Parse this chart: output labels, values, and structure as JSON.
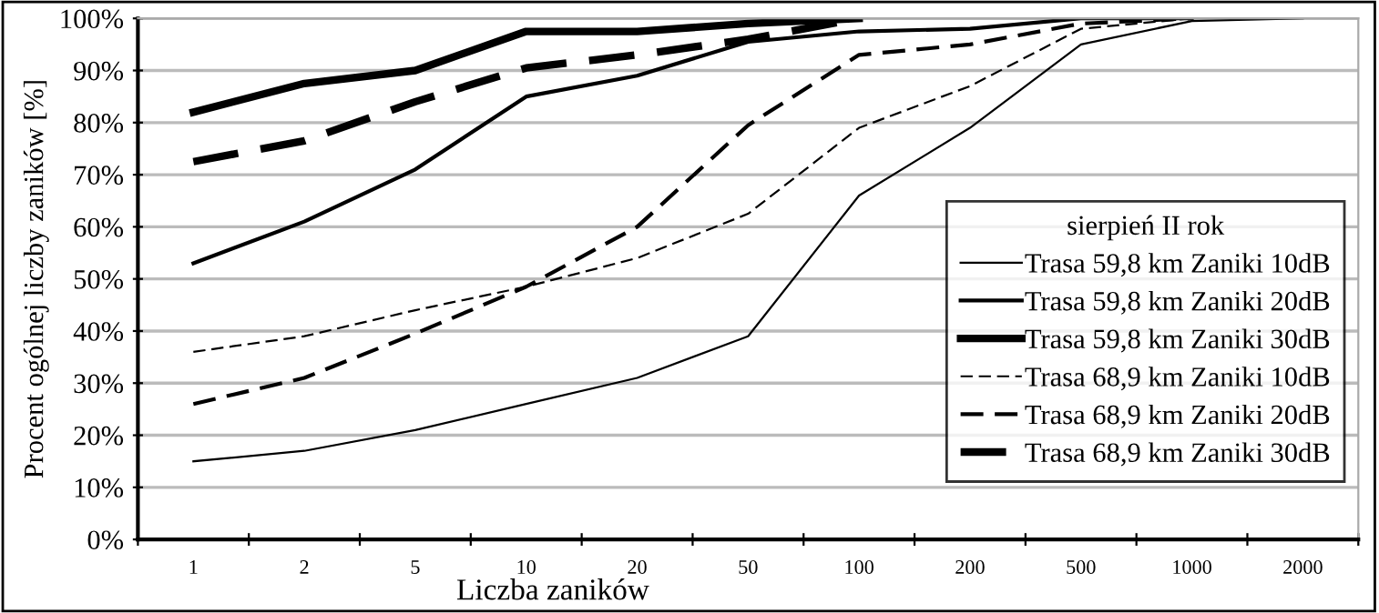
{
  "chart_data": {
    "type": "line",
    "xlabel": "Liczba zaników",
    "ylabel": "Procent ogólnej liczby zaników [%]",
    "legend_title": "sierpień II rok",
    "categories": [
      "1",
      "2",
      "5",
      "10",
      "20",
      "50",
      "100",
      "200",
      "500",
      "1000",
      "2000"
    ],
    "series": [
      {
        "name": "Trasa 59,8 km Zaniki 10dB",
        "color": "#000000",
        "line_style": "solid",
        "values": [
          15,
          17,
          21,
          26,
          31,
          39,
          66,
          79,
          95,
          99.5,
          100
        ]
      },
      {
        "name": "Trasa 59,8 km Zaniki 20dB",
        "color": "#000000",
        "line_style": "solid",
        "values": [
          53,
          61,
          71,
          85,
          89,
          95.5,
          97.5,
          98,
          100,
          100,
          null
        ]
      },
      {
        "name": "Trasa 59,8 km Zaniki 30dB",
        "color": "#000000",
        "line_style": "solid",
        "values": [
          82,
          87.5,
          90,
          97.5,
          97.5,
          99,
          100,
          null,
          null,
          null,
          null
        ]
      },
      {
        "name": "Trasa 68,9 km Zaniki 10dB",
        "color": "#000000",
        "line_style": "dashed",
        "values": [
          36,
          39,
          44,
          48.5,
          54,
          62.5,
          79,
          87,
          98,
          100,
          null
        ]
      },
      {
        "name": "Trasa 68,9 km Zaniki 20dB",
        "color": "#000000",
        "line_style": "dashed",
        "values": [
          26,
          31,
          39.5,
          48.5,
          60,
          79.5,
          93,
          95,
          99,
          100,
          null
        ]
      },
      {
        "name": "Trasa 68,9 km Zaniki 30dB",
        "color": "#000000",
        "line_style": "dashed",
        "values": [
          72.5,
          76.5,
          84,
          90.5,
          93,
          96,
          100,
          null,
          null,
          null,
          null
        ]
      }
    ],
    "ylim": [
      0,
      100
    ],
    "yticks": [
      {
        "value": 0,
        "label": "0%"
      },
      {
        "value": 10,
        "label": "10%"
      },
      {
        "value": 20,
        "label": "20%"
      },
      {
        "value": 30,
        "label": "30%"
      },
      {
        "value": 40,
        "label": "40%"
      },
      {
        "value": 50,
        "label": "50%"
      },
      {
        "value": 60,
        "label": "60%"
      },
      {
        "value": 70,
        "label": "70%"
      },
      {
        "value": 80,
        "label": "80%"
      },
      {
        "value": 90,
        "label": "90%"
      },
      {
        "value": 100,
        "label": "100%"
      }
    ],
    "grid": "y",
    "legend": "right",
    "marker": "none"
  }
}
